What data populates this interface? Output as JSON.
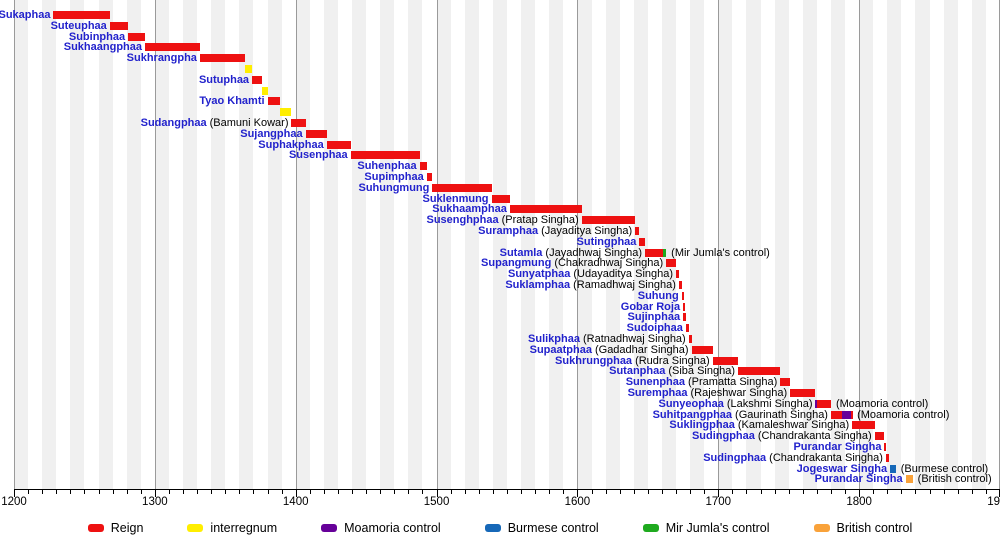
{
  "chart_data": {
    "type": "bar",
    "variant": "horizontal-reign-timeline (gantt)",
    "axis": {
      "min": 1200,
      "max": 1900,
      "major_tick_interval": 100,
      "minor_tick_interval": 10,
      "tick_labels": [
        "1200",
        "1300",
        "1400",
        "1500",
        "1600",
        "1700",
        "1800",
        "1900"
      ],
      "grid": "alternating decade stripes + century gridlines"
    },
    "colors": {
      "reign": "#ee1111",
      "interregnum": "#ffee00",
      "moamoria": "#660099",
      "burmese": "#1668b8",
      "mirjumla": "#1faa1f",
      "british": "#f9a23a",
      "name_label": "#2222cc",
      "stripe": "#f0f0f0",
      "gridline": "#9a9a9a"
    },
    "legend": [
      {
        "label": "Reign",
        "type": "reign"
      },
      {
        "label": "interregnum",
        "type": "interregnum"
      },
      {
        "label": "Moamoria control",
        "type": "moamoria"
      },
      {
        "label": "Burmese control",
        "type": "burmese"
      },
      {
        "label": "Mir Jumla's control",
        "type": "mirjumla"
      },
      {
        "label": "British control",
        "type": "british"
      }
    ],
    "rows": [
      {
        "name": "Sukaphaa",
        "segments": [
          {
            "type": "reign",
            "start": 1228,
            "end": 1268
          }
        ]
      },
      {
        "name": "Suteuphaa",
        "segments": [
          {
            "type": "reign",
            "start": 1268,
            "end": 1281
          }
        ]
      },
      {
        "name": "Subinphaa",
        "segments": [
          {
            "type": "reign",
            "start": 1281,
            "end": 1293
          }
        ]
      },
      {
        "name": "Sukhaangphaa",
        "segments": [
          {
            "type": "reign",
            "start": 1293,
            "end": 1332
          }
        ]
      },
      {
        "name": "Sukhrangpha",
        "segments": [
          {
            "type": "reign",
            "start": 1332,
            "end": 1364
          }
        ]
      },
      {
        "name": "",
        "segments": [
          {
            "type": "interregnum",
            "start": 1364,
            "end": 1369
          }
        ]
      },
      {
        "name": "Sutuphaa",
        "segments": [
          {
            "type": "reign",
            "start": 1369,
            "end": 1376
          }
        ]
      },
      {
        "name": "",
        "segments": [
          {
            "type": "interregnum",
            "start": 1376,
            "end": 1380
          }
        ]
      },
      {
        "name": "Tyao Khamti",
        "segments": [
          {
            "type": "reign",
            "start": 1380,
            "end": 1389
          }
        ]
      },
      {
        "name": "",
        "segments": [
          {
            "type": "interregnum",
            "start": 1389,
            "end": 1397
          }
        ]
      },
      {
        "name": "Sudangphaa",
        "detail": "(Bamuni Kowar)",
        "segments": [
          {
            "type": "reign",
            "start": 1397,
            "end": 1407
          }
        ]
      },
      {
        "name": "Sujangphaa",
        "segments": [
          {
            "type": "reign",
            "start": 1407,
            "end": 1422
          }
        ]
      },
      {
        "name": "Suphakphaa",
        "segments": [
          {
            "type": "reign",
            "start": 1422,
            "end": 1439
          }
        ]
      },
      {
        "name": "Susenphaa",
        "segments": [
          {
            "type": "reign",
            "start": 1439,
            "end": 1488
          }
        ]
      },
      {
        "name": "Suhenphaa",
        "segments": [
          {
            "type": "reign",
            "start": 1488,
            "end": 1493
          }
        ]
      },
      {
        "name": "Supimphaa",
        "segments": [
          {
            "type": "reign",
            "start": 1493,
            "end": 1497
          }
        ]
      },
      {
        "name": "Suhungmung",
        "segments": [
          {
            "type": "reign",
            "start": 1497,
            "end": 1539
          }
        ]
      },
      {
        "name": "Suklenmung",
        "segments": [
          {
            "type": "reign",
            "start": 1539,
            "end": 1552
          }
        ]
      },
      {
        "name": "Sukhaamphaa",
        "segments": [
          {
            "type": "reign",
            "start": 1552,
            "end": 1603
          }
        ]
      },
      {
        "name": "Susenghphaa",
        "detail": "(Pratap Singha)",
        "segments": [
          {
            "type": "reign",
            "start": 1603,
            "end": 1641
          }
        ]
      },
      {
        "name": "Suramphaa",
        "detail": "(Jayaditya Singha)",
        "segments": [
          {
            "type": "reign",
            "start": 1641,
            "end": 1644
          }
        ]
      },
      {
        "name": "Sutingphaa",
        "segments": [
          {
            "type": "reign",
            "start": 1644,
            "end": 1648
          }
        ]
      },
      {
        "name": "Sutamla",
        "detail": "(Jayadhwaj Singha)",
        "note": "(Mir Jumla's control)",
        "segments": [
          {
            "type": "reign",
            "start": 1648,
            "end": 1661
          },
          {
            "type": "mirjumla",
            "start": 1661,
            "end": 1663
          }
        ]
      },
      {
        "name": "Supangmung",
        "detail": "(Chakradhwaj Singha)",
        "segments": [
          {
            "type": "reign",
            "start": 1663,
            "end": 1670
          }
        ]
      },
      {
        "name": "Sunyatphaa",
        "detail": "(Udayaditya Singha)",
        "segments": [
          {
            "type": "reign",
            "start": 1670,
            "end": 1672
          }
        ]
      },
      {
        "name": "Suklamphaa",
        "detail": "(Ramadhwaj Singha)",
        "segments": [
          {
            "type": "reign",
            "start": 1672,
            "end": 1674
          }
        ]
      },
      {
        "name": "Suhung",
        "segments": [
          {
            "type": "reign",
            "start": 1674,
            "end": 1675
          }
        ]
      },
      {
        "name": "Gobar Roja",
        "segments": [
          {
            "type": "reign",
            "start": 1675,
            "end": 1675.5
          }
        ]
      },
      {
        "name": "Sujinphaa",
        "segments": [
          {
            "type": "reign",
            "start": 1675,
            "end": 1677
          }
        ]
      },
      {
        "name": "Sudoiphaa",
        "segments": [
          {
            "type": "reign",
            "start": 1677,
            "end": 1679
          }
        ]
      },
      {
        "name": "Sulikphaa",
        "detail": "(Ratnadhwaj Singha)",
        "segments": [
          {
            "type": "reign",
            "start": 1679,
            "end": 1681
          }
        ]
      },
      {
        "name": "Supaatphaa",
        "detail": "(Gadadhar Singha)",
        "segments": [
          {
            "type": "reign",
            "start": 1681,
            "end": 1696
          }
        ]
      },
      {
        "name": "Sukhrungphaa",
        "detail": "(Rudra Singha)",
        "segments": [
          {
            "type": "reign",
            "start": 1696,
            "end": 1714
          }
        ]
      },
      {
        "name": "Sutanphaa",
        "detail": "(Siba Singha)",
        "segments": [
          {
            "type": "reign",
            "start": 1714,
            "end": 1744
          }
        ]
      },
      {
        "name": "Sunenphaa",
        "detail": "(Pramatta Singha)",
        "segments": [
          {
            "type": "reign",
            "start": 1744,
            "end": 1751
          }
        ]
      },
      {
        "name": "Suremphaa",
        "detail": "(Rajeshwar Singha)",
        "segments": [
          {
            "type": "reign",
            "start": 1751,
            "end": 1769
          }
        ]
      },
      {
        "name": "Sunyeophaa",
        "detail": "(Lakshmi Singha)",
        "note": "(Moamoria control)",
        "segments": [
          {
            "type": "moamoria",
            "start": 1769,
            "end": 1770
          },
          {
            "type": "reign",
            "start": 1770,
            "end": 1780
          }
        ]
      },
      {
        "name": "Suhitpangphaa",
        "detail": "(Gaurinath Singha)",
        "note": "(Moamoria control)",
        "segments": [
          {
            "type": "reign",
            "start": 1780,
            "end": 1788
          },
          {
            "type": "moamoria",
            "start": 1788,
            "end": 1794
          },
          {
            "type": "reign",
            "start": 1794,
            "end": 1795
          }
        ]
      },
      {
        "name": "Suklingphaa",
        "detail": "(Kamaleshwar Singha)",
        "segments": [
          {
            "type": "reign",
            "start": 1795,
            "end": 1811
          }
        ]
      },
      {
        "name": "Sudingphaa",
        "detail": "(Chandrakanta Singha)",
        "segments": [
          {
            "type": "reign",
            "start": 1811,
            "end": 1818
          }
        ]
      },
      {
        "name": "Purandar Singha",
        "segments": [
          {
            "type": "reign",
            "start": 1818,
            "end": 1819
          }
        ]
      },
      {
        "name": "Sudingphaa",
        "detail": "(Chandrakanta Singha)",
        "segments": [
          {
            "type": "reign",
            "start": 1819,
            "end": 1821
          }
        ]
      },
      {
        "name": "Jogeswar Singha",
        "note": "(Burmese control)",
        "segments": [
          {
            "type": "burmese",
            "start": 1822,
            "end": 1826
          }
        ]
      },
      {
        "name": "Purandar Singha",
        "note": "(British control)",
        "segments": [
          {
            "type": "british",
            "start": 1833,
            "end": 1838
          }
        ]
      }
    ]
  }
}
